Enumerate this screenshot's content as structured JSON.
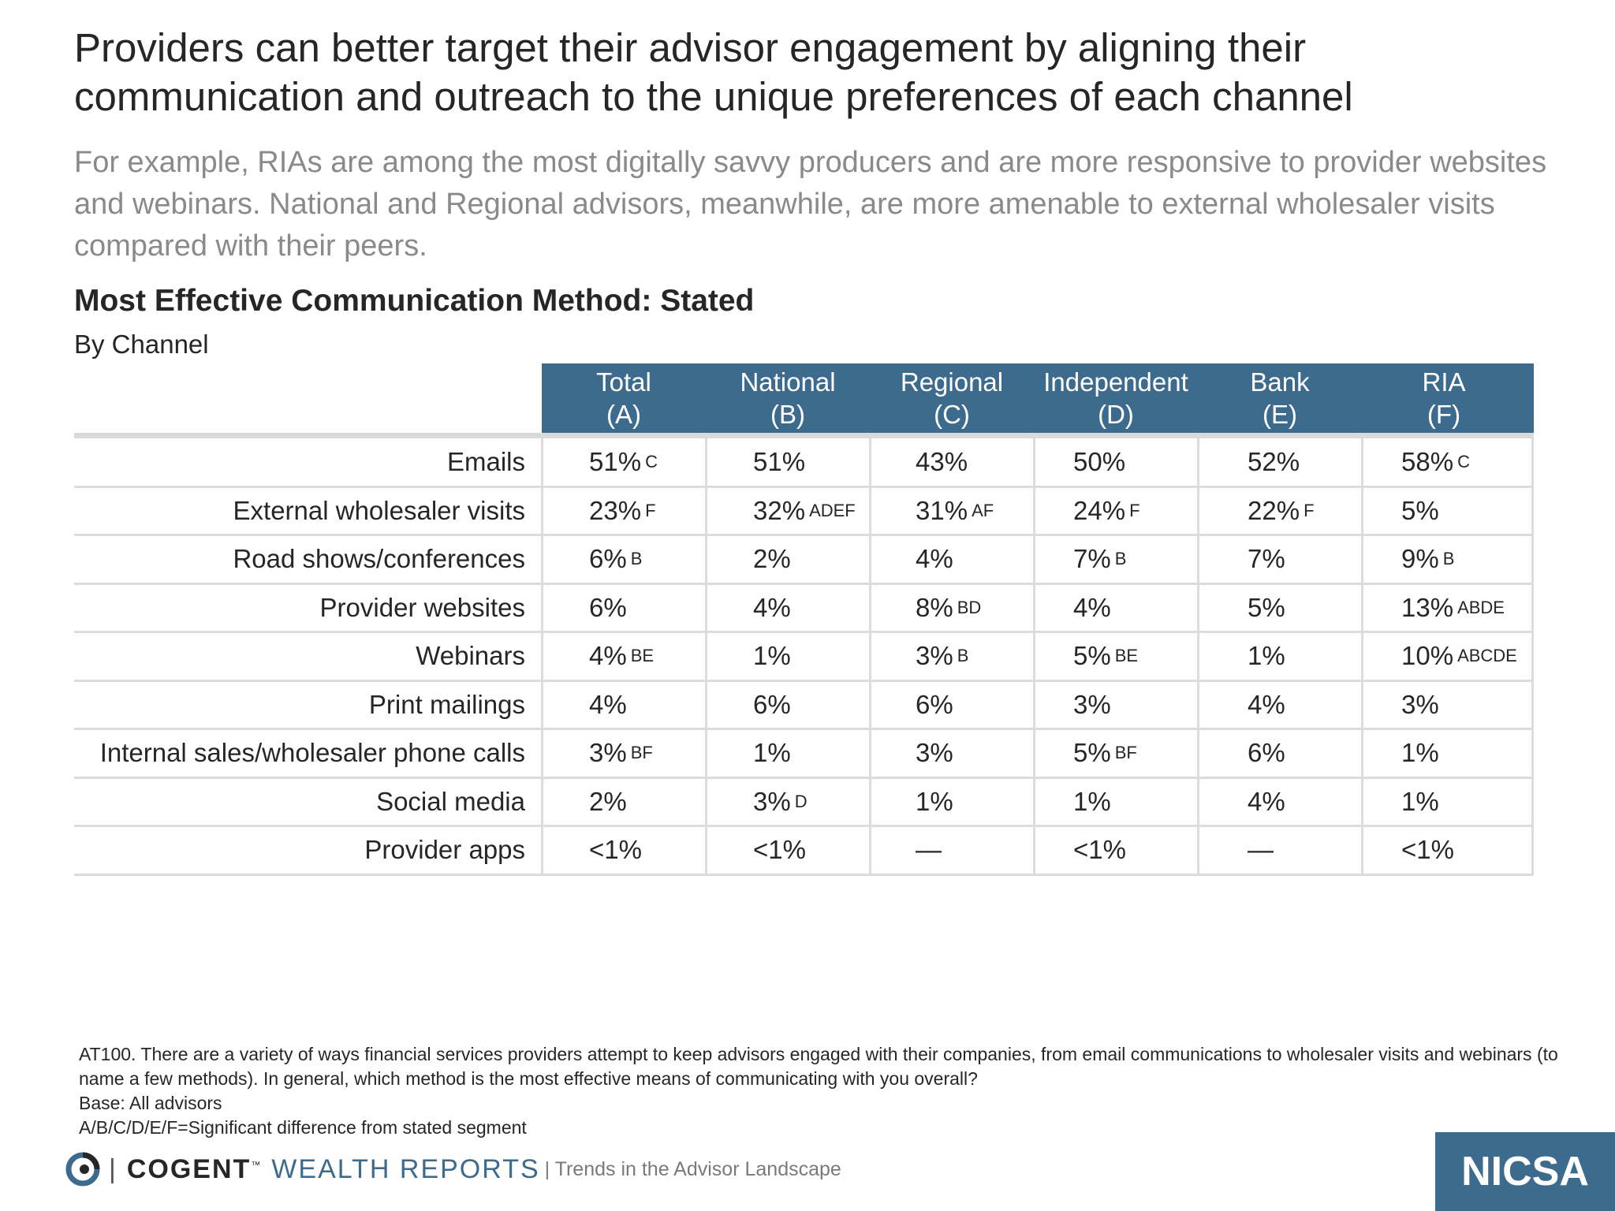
{
  "title": "Providers can better target their advisor engagement by aligning their communication and outreach to the unique preferences of each channel",
  "subtitle": "For example, RIAs are among the most digitally savvy producers and are more responsive to provider websites and webinars. National and Regional advisors, meanwhile, are more amenable to external wholesaler visits compared with their peers.",
  "table": {
    "title": "Most Effective Communication Method: Stated",
    "subtitle": "By Channel",
    "columns": [
      {
        "name": "Total",
        "code": "(A)"
      },
      {
        "name": "National",
        "code": "(B)"
      },
      {
        "name": "Regional",
        "code": "(C)"
      },
      {
        "name": "Independent",
        "code": "(D)"
      },
      {
        "name": "Bank",
        "code": "(E)"
      },
      {
        "name": "RIA",
        "code": "(F)"
      }
    ],
    "rows": [
      {
        "label": "Emails",
        "cells": [
          {
            "v": "51%",
            "s": "C"
          },
          {
            "v": "51%",
            "s": ""
          },
          {
            "v": "43%",
            "s": ""
          },
          {
            "v": "50%",
            "s": ""
          },
          {
            "v": "52%",
            "s": ""
          },
          {
            "v": "58%",
            "s": "C"
          }
        ]
      },
      {
        "label": "External wholesaler visits",
        "cells": [
          {
            "v": "23%",
            "s": "F"
          },
          {
            "v": "32%",
            "s": "ADEF"
          },
          {
            "v": "31%",
            "s": "AF"
          },
          {
            "v": "24%",
            "s": "F"
          },
          {
            "v": "22%",
            "s": "F"
          },
          {
            "v": "5%",
            "s": ""
          }
        ]
      },
      {
        "label": "Road shows/conferences",
        "cells": [
          {
            "v": "6%",
            "s": "B"
          },
          {
            "v": "2%",
            "s": ""
          },
          {
            "v": "4%",
            "s": ""
          },
          {
            "v": "7%",
            "s": "B"
          },
          {
            "v": "7%",
            "s": ""
          },
          {
            "v": "9%",
            "s": "B"
          }
        ]
      },
      {
        "label": "Provider websites",
        "cells": [
          {
            "v": "6%",
            "s": ""
          },
          {
            "v": "4%",
            "s": ""
          },
          {
            "v": "8%",
            "s": "BD"
          },
          {
            "v": "4%",
            "s": ""
          },
          {
            "v": "5%",
            "s": ""
          },
          {
            "v": "13%",
            "s": "ABDE"
          }
        ]
      },
      {
        "label": "Webinars",
        "cells": [
          {
            "v": "4%",
            "s": "BE"
          },
          {
            "v": "1%",
            "s": ""
          },
          {
            "v": "3%",
            "s": "B"
          },
          {
            "v": "5%",
            "s": "BE"
          },
          {
            "v": "1%",
            "s": ""
          },
          {
            "v": "10%",
            "s": "ABCDE"
          }
        ]
      },
      {
        "label": "Print mailings",
        "cells": [
          {
            "v": "4%",
            "s": ""
          },
          {
            "v": "6%",
            "s": ""
          },
          {
            "v": "6%",
            "s": ""
          },
          {
            "v": "3%",
            "s": ""
          },
          {
            "v": "4%",
            "s": ""
          },
          {
            "v": "3%",
            "s": ""
          }
        ]
      },
      {
        "label": "Internal sales/wholesaler phone calls",
        "cells": [
          {
            "v": "3%",
            "s": "BF"
          },
          {
            "v": "1%",
            "s": ""
          },
          {
            "v": "3%",
            "s": ""
          },
          {
            "v": "5%",
            "s": "BF"
          },
          {
            "v": "6%",
            "s": ""
          },
          {
            "v": "1%",
            "s": ""
          }
        ]
      },
      {
        "label": "Social media",
        "cells": [
          {
            "v": "2%",
            "s": ""
          },
          {
            "v": "3%",
            "s": "D"
          },
          {
            "v": "1%",
            "s": ""
          },
          {
            "v": "1%",
            "s": ""
          },
          {
            "v": "4%",
            "s": ""
          },
          {
            "v": "1%",
            "s": ""
          }
        ]
      },
      {
        "label": "Provider apps",
        "cells": [
          {
            "v": "<1%",
            "s": ""
          },
          {
            "v": "<1%",
            "s": ""
          },
          {
            "v": "—",
            "s": ""
          },
          {
            "v": "<1%",
            "s": ""
          },
          {
            "v": "—",
            "s": ""
          },
          {
            "v": "<1%",
            "s": ""
          }
        ]
      }
    ]
  },
  "footnotes": [
    "AT100. There are a variety of ways financial services providers attempt to keep advisors engaged with their companies, from email communications to wholesaler visits and webinars (to name a few methods). In general, which method is the most effective means of communicating with you overall?",
    "Base: All advisors",
    "A/B/C/D/E/F=Significant difference from stated segment"
  ],
  "footer": {
    "separator": "|",
    "brand_primary": "COGENT",
    "brand_tm": "™",
    "brand_secondary": "WEALTH REPORTS",
    "tagline": "| Trends in the Advisor Landscape",
    "partner_logo": "NICSA",
    "brand_color": "#3d6b8e"
  },
  "colors": {
    "header_bg": "#3d6b8e",
    "title_text": "#262626",
    "subtitle_text": "#8a8a8a",
    "grid": "#dcdcdc"
  }
}
